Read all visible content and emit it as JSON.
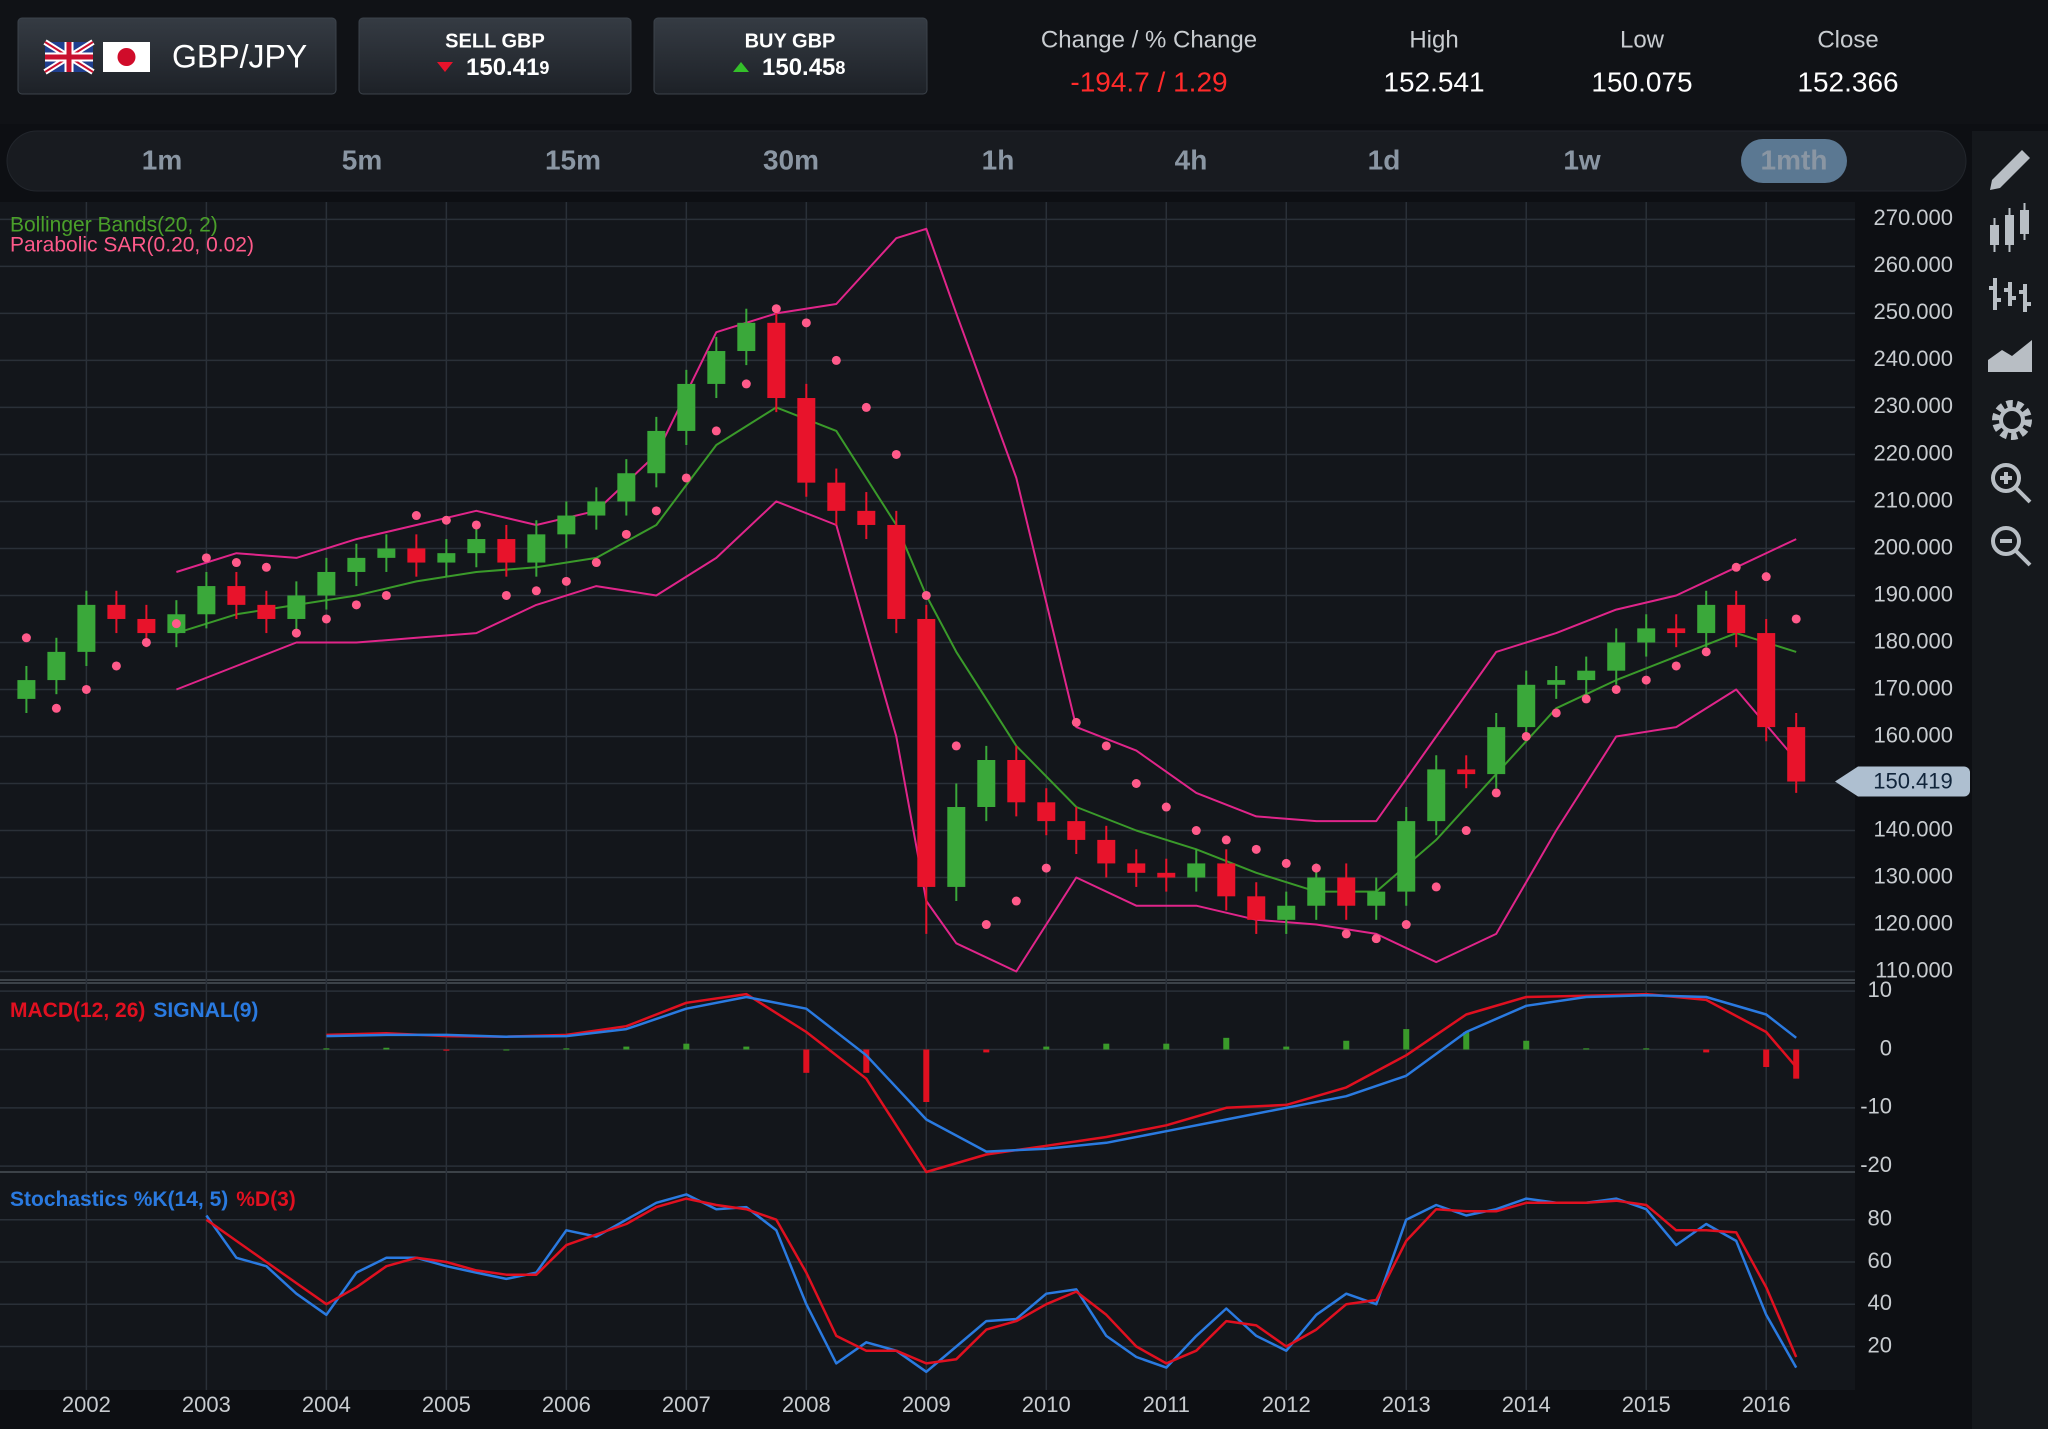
{
  "header": {
    "pair": "GBP/JPY",
    "sell": {
      "label": "SELL GBP",
      "price_main": "150.41",
      "price_pip": "9"
    },
    "buy": {
      "label": "BUY GBP",
      "price_main": "150.45",
      "price_pip": "8"
    },
    "stats": [
      {
        "label": "Change / % Change",
        "value": "-194.7 / 1.29"
      },
      {
        "label": "High",
        "value": "152.541"
      },
      {
        "label": "Low",
        "value": "150.075"
      },
      {
        "label": "Close",
        "value": "152.366"
      }
    ]
  },
  "timeframes": {
    "options": [
      "1m",
      "5m",
      "15m",
      "30m",
      "1h",
      "4h",
      "1d",
      "1w",
      "1mth"
    ],
    "active": 8
  },
  "chart_data": [
    {
      "type": "candlestick",
      "up_color": "#3aa83a",
      "down_color": "#e8132b",
      "xlim": [
        2001.28,
        2016.74
      ],
      "ylim": [
        108.2,
        273.7
      ],
      "yticks": [
        {
          "value": 110,
          "label": "110.000"
        },
        {
          "value": 120,
          "label": "120.000"
        },
        {
          "value": 130,
          "label": "130.000"
        },
        {
          "value": 140,
          "label": "140.000"
        },
        {
          "value": 150,
          "label": "150.000"
        },
        {
          "value": 160,
          "label": "160.000"
        },
        {
          "value": 170,
          "label": "170.000"
        },
        {
          "value": 180,
          "label": "180.000"
        },
        {
          "value": 190,
          "label": "190.000"
        },
        {
          "value": 200,
          "label": "200.000"
        },
        {
          "value": 210,
          "label": "210.000"
        },
        {
          "value": 220,
          "label": "220.000"
        },
        {
          "value": 230,
          "label": "230.000"
        },
        {
          "value": 240,
          "label": "240.000"
        },
        {
          "value": 250,
          "label": "250.000"
        },
        {
          "value": 260,
          "label": "260.000"
        },
        {
          "value": 270,
          "label": "270.000"
        }
      ],
      "grid": true,
      "last_price": 150.419,
      "x": [
        2001.5,
        2001.75,
        2002,
        2002.25,
        2002.5,
        2002.75,
        2003,
        2003.25,
        2003.5,
        2003.75,
        2004,
        2004.25,
        2004.5,
        2004.75,
        2005,
        2005.25,
        2005.5,
        2005.75,
        2006,
        2006.25,
        2006.5,
        2006.75,
        2007,
        2007.25,
        2007.5,
        2007.75,
        2008,
        2008.25,
        2008.5,
        2008.75,
        2009,
        2009.25,
        2009.5,
        2009.75,
        2010,
        2010.25,
        2010.5,
        2010.75,
        2011,
        2011.25,
        2011.5,
        2011.75,
        2012,
        2012.25,
        2012.5,
        2012.75,
        2013,
        2013.25,
        2013.5,
        2013.75,
        2014,
        2014.25,
        2014.5,
        2014.75,
        2015,
        2015.25,
        2015.5,
        2015.75,
        2016,
        2016.25
      ],
      "open": [
        168,
        172,
        178,
        188,
        185,
        182,
        186,
        192,
        188,
        185,
        190,
        195,
        198,
        200,
        197,
        199,
        202,
        197,
        203,
        207,
        210,
        216,
        225,
        235,
        242,
        248,
        232,
        214,
        208,
        205,
        185,
        128,
        145,
        155,
        146,
        142,
        138,
        133,
        131,
        130,
        133,
        126,
        121,
        124,
        130,
        124,
        127,
        142,
        153,
        152,
        162,
        171,
        172,
        174,
        180,
        183,
        182,
        188,
        182,
        162
      ],
      "high": [
        175,
        181,
        191,
        191,
        188,
        189,
        195,
        195,
        191,
        193,
        198,
        201,
        203,
        203,
        202,
        205,
        205,
        206,
        210,
        213,
        219,
        228,
        238,
        245,
        251,
        251,
        235,
        217,
        212,
        208,
        188,
        150,
        158,
        158,
        149,
        145,
        141,
        136,
        134,
        136,
        136,
        129,
        127,
        133,
        133,
        130,
        145,
        156,
        156,
        165,
        174,
        175,
        177,
        183,
        186,
        186,
        191,
        191,
        185,
        165
      ],
      "low": [
        165,
        169,
        175,
        182,
        179,
        179,
        183,
        185,
        182,
        182,
        187,
        192,
        195,
        194,
        194,
        196,
        194,
        194,
        200,
        204,
        207,
        213,
        222,
        232,
        239,
        229,
        211,
        205,
        202,
        182,
        118,
        125,
        142,
        143,
        139,
        135,
        130,
        128,
        127,
        127,
        123,
        118,
        118,
        121,
        121,
        121,
        124,
        139,
        149,
        149,
        159,
        168,
        169,
        171,
        177,
        179,
        179,
        179,
        159,
        148
      ],
      "close": [
        172,
        178,
        188,
        185,
        182,
        186,
        192,
        188,
        185,
        190,
        195,
        198,
        200,
        197,
        199,
        202,
        197,
        203,
        207,
        210,
        216,
        225,
        235,
        242,
        248,
        232,
        214,
        208,
        205,
        185,
        128,
        145,
        155,
        146,
        142,
        138,
        133,
        131,
        130,
        133,
        126,
        121,
        124,
        130,
        124,
        127,
        142,
        153,
        152,
        162,
        171,
        172,
        174,
        180,
        183,
        182,
        188,
        182,
        162,
        150.419
      ],
      "bollinger": {
        "name": "Bollinger Bands(20, 2)",
        "color": "#4aa02a",
        "band_color": "#e0258a",
        "middle_color": "#3a9a2a",
        "x": [
          2002.75,
          2003.25,
          2003.75,
          2004.25,
          2004.75,
          2005.25,
          2005.75,
          2006.25,
          2006.75,
          2007.25,
          2007.75,
          2008.25,
          2008.75,
          2009,
          2009.25,
          2009.75,
          2010.25,
          2010.75,
          2011.25,
          2011.75,
          2012.25,
          2012.75,
          2013.25,
          2013.75,
          2014.25,
          2014.75,
          2015.25,
          2015.75,
          2016.25
        ],
        "upper": [
          195,
          199,
          198,
          202,
          205,
          208,
          205,
          208,
          220,
          246,
          250,
          252,
          266,
          268,
          250,
          215,
          162,
          157,
          148,
          143,
          142,
          142,
          160,
          178,
          182,
          187,
          190,
          196,
          202
        ],
        "middle": [
          182,
          186,
          188,
          190,
          193,
          195,
          196,
          198,
          205,
          222,
          230,
          225,
          205,
          190,
          178,
          158,
          145,
          140,
          136,
          131,
          127,
          127,
          138,
          152,
          166,
          172,
          177,
          182,
          178
        ],
        "lower": [
          170,
          175,
          180,
          180,
          181,
          182,
          188,
          192,
          190,
          198,
          210,
          205,
          160,
          125,
          116,
          110,
          130,
          124,
          124,
          121,
          120,
          118,
          112,
          118,
          140,
          160,
          162,
          170,
          155
        ]
      },
      "sar": {
        "name": "Parabolic SAR(0.20, 0.02)",
        "color": "#ff5a8a",
        "values": [
          181,
          166,
          170,
          175,
          180,
          184,
          198,
          197,
          196,
          182,
          185,
          188,
          190,
          207,
          206,
          205,
          190,
          191,
          193,
          197,
          203,
          208,
          215,
          225,
          235,
          251,
          248,
          240,
          230,
          220,
          190,
          158,
          120,
          125,
          132,
          163,
          158,
          150,
          145,
          140,
          138,
          136,
          133,
          132,
          118,
          117,
          120,
          128,
          140,
          148,
          160,
          165,
          168,
          170,
          172,
          175,
          178,
          196,
          194,
          185
        ]
      }
    },
    {
      "type": "line",
      "xlim": [
        2001.28,
        2016.74
      ],
      "ylim": [
        -21,
        11.4
      ],
      "yticks": [
        10,
        0,
        -10,
        -20
      ],
      "grid": true,
      "x": [
        2004,
        2004.5,
        2005,
        2005.5,
        2006,
        2006.5,
        2007,
        2007.5,
        2008,
        2008.5,
        2009,
        2009.5,
        2010,
        2010.5,
        2011,
        2011.5,
        2012,
        2012.5,
        2013,
        2013.5,
        2014,
        2014.5,
        2015,
        2015.5,
        2016,
        2016.25
      ],
      "series": [
        {
          "name": "MACD(12, 26)",
          "color": "#e01020",
          "values": [
            2.5,
            2.8,
            2.3,
            2.2,
            2.5,
            4,
            8,
            9.5,
            3,
            -5,
            -21,
            -18,
            -16.5,
            -15,
            -13,
            -10,
            -9.5,
            -6.5,
            -1,
            6,
            9,
            9.2,
            9.5,
            8.5,
            3,
            -3
          ]
        },
        {
          "name": "SIGNAL(9)",
          "color": "#2a7ae0",
          "values": [
            2.3,
            2.5,
            2.5,
            2.2,
            2.3,
            3.5,
            7,
            9,
            7,
            -1,
            -12,
            -17.5,
            -17,
            -16,
            -14,
            -12,
            -10,
            -8,
            -4.5,
            3,
            7.5,
            9,
            9.3,
            9,
            6,
            2
          ]
        }
      ],
      "histogram": {
        "up_color": "#3a9a2a",
        "down_color": "#e01020",
        "values": [
          0.2,
          0.3,
          -0.2,
          0,
          0.2,
          0.5,
          1,
          0.5,
          -4,
          -4,
          -9,
          -0.5,
          0.5,
          1,
          1,
          2,
          0.5,
          1.5,
          3.5,
          3,
          1.5,
          0.2,
          0.2,
          -0.5,
          -3,
          -5
        ]
      }
    },
    {
      "type": "line",
      "xlim": [
        2001.28,
        2016.74
      ],
      "ylim": [
        -0.6,
        102.6
      ],
      "yticks": [
        20,
        40,
        60,
        80
      ],
      "grid": true,
      "xticks": [
        2002,
        2003,
        2004,
        2005,
        2006,
        2007,
        2008,
        2009,
        2010,
        2011,
        2012,
        2013,
        2014,
        2015,
        2016
      ],
      "x": [
        2003,
        2003.25,
        2003.5,
        2003.75,
        2004,
        2004.25,
        2004.5,
        2004.75,
        2005,
        2005.25,
        2005.5,
        2005.75,
        2006,
        2006.25,
        2006.5,
        2006.75,
        2007,
        2007.25,
        2007.5,
        2007.75,
        2008,
        2008.25,
        2008.5,
        2008.75,
        2009,
        2009.25,
        2009.5,
        2009.75,
        2010,
        2010.25,
        2010.5,
        2010.75,
        2011,
        2011.25,
        2011.5,
        2011.75,
        2012,
        2012.25,
        2012.5,
        2012.75,
        2013,
        2013.25,
        2013.5,
        2013.75,
        2014,
        2014.25,
        2014.5,
        2014.75,
        2015,
        2015.25,
        2015.5,
        2015.75,
        2016,
        2016.25
      ],
      "series": [
        {
          "name": "Stochastics %K(14, 5)",
          "color": "#2a7ae0",
          "values": [
            82,
            62,
            58,
            45,
            35,
            55,
            62,
            62,
            58,
            55,
            52,
            55,
            75,
            72,
            80,
            88,
            92,
            85,
            86,
            75,
            40,
            12,
            22,
            18,
            8,
            20,
            32,
            33,
            45,
            47,
            25,
            15,
            10,
            25,
            38,
            25,
            18,
            35,
            45,
            40,
            80,
            87,
            82,
            85,
            90,
            88,
            88,
            90,
            85,
            68,
            78,
            70,
            35,
            10
          ]
        },
        {
          "name": "%D(3)",
          "color": "#e01020",
          "values": [
            80,
            70,
            60,
            50,
            40,
            48,
            58,
            62,
            60,
            56,
            54,
            54,
            68,
            73,
            78,
            86,
            90,
            87,
            85,
            80,
            55,
            25,
            18,
            18,
            12,
            14,
            28,
            32,
            40,
            46,
            35,
            20,
            12,
            18,
            32,
            30,
            20,
            28,
            40,
            42,
            70,
            85,
            84,
            84,
            88,
            88,
            88,
            89,
            87,
            75,
            75,
            74,
            48,
            15
          ]
        }
      ]
    }
  ]
}
